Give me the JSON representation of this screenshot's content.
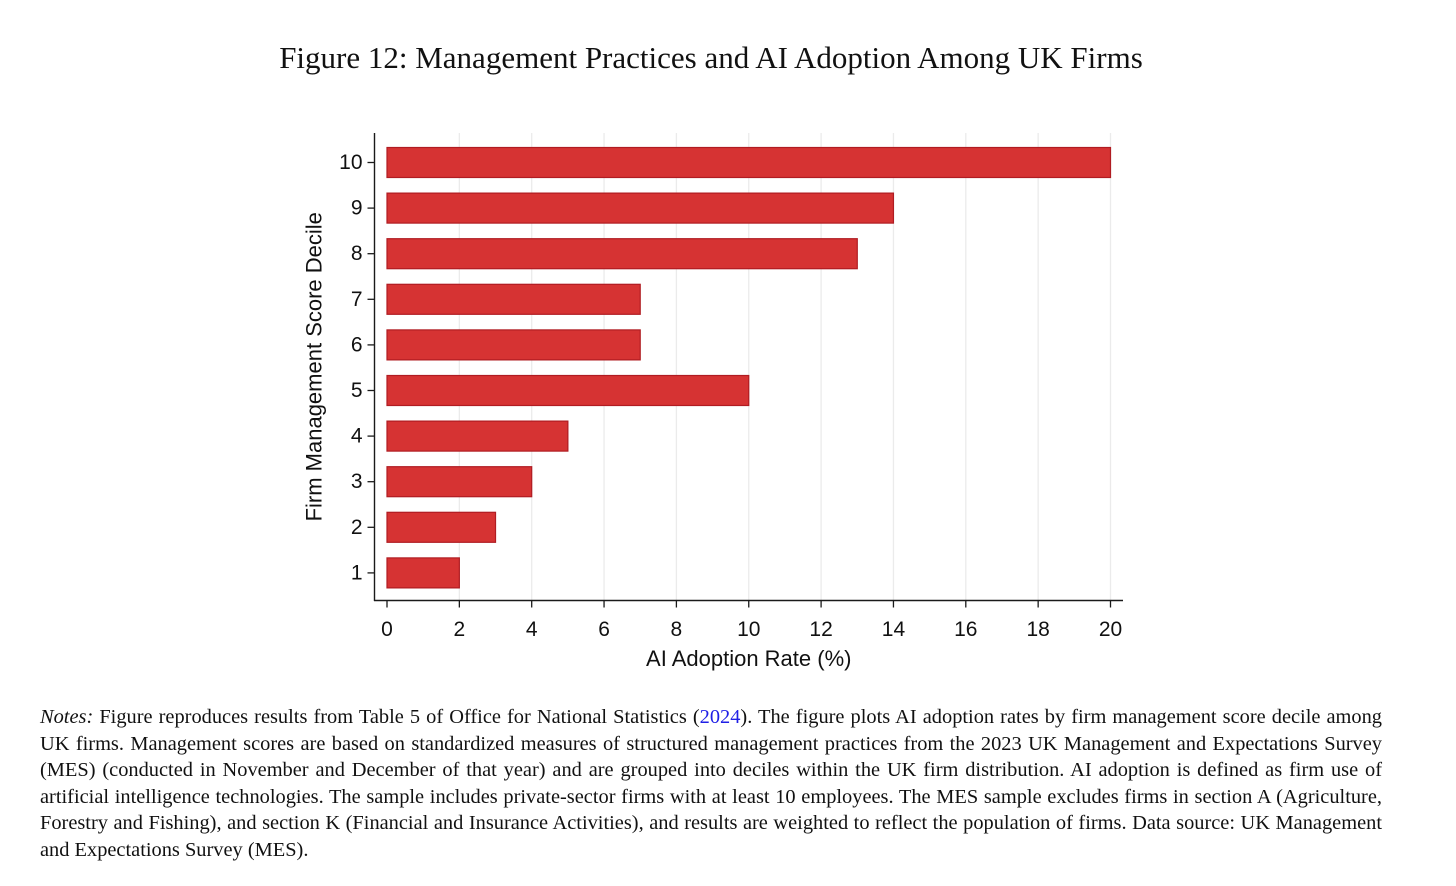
{
  "figure": {
    "title": "Figure 12: Management Practices and AI Adoption Among UK Firms"
  },
  "notes": {
    "lead": "Notes:",
    "text_before_citation": " Figure reproduces results from Table 5 of Office for National Statistics (",
    "citation": "2024",
    "text_after_citation": ").  The figure plots AI adoption rates by firm management score decile among UK firms.  Management scores are based on standardized measures of structured management practices from the 2023 UK Management and Expectations Survey (MES) (conducted in November and December of that year) and are grouped into deciles within the UK firm distribution.  AI adoption is defined as firm use of artificial intelligence technologies.  The sample includes private-sector firms with at least 10 employees.  The MES sample excludes firms in section A (Agriculture, Forestry and Fishing), and section K (Financial and Insurance Activities), and results are weighted to reflect the population of firms. Data source: UK Management and Expectations Survey (MES)."
  },
  "chart_data": {
    "type": "bar",
    "orientation": "horizontal",
    "categories": [
      "1",
      "2",
      "3",
      "4",
      "5",
      "6",
      "7",
      "8",
      "9",
      "10"
    ],
    "values": [
      2,
      3,
      4,
      5,
      10,
      7,
      7,
      13,
      14,
      20
    ],
    "xlabel": "AI Adoption Rate (%)",
    "ylabel": "Firm Management Score Decile",
    "xlim": [
      0,
      20
    ],
    "xticks": [
      0,
      2,
      4,
      6,
      8,
      10,
      12,
      14,
      16,
      18,
      20
    ],
    "grid": "vertical",
    "bar_color": "#d63333",
    "bar_edge_color": "#b01c22",
    "grid_color": "#ebebeb",
    "axis_color": "#1a1a1a"
  }
}
